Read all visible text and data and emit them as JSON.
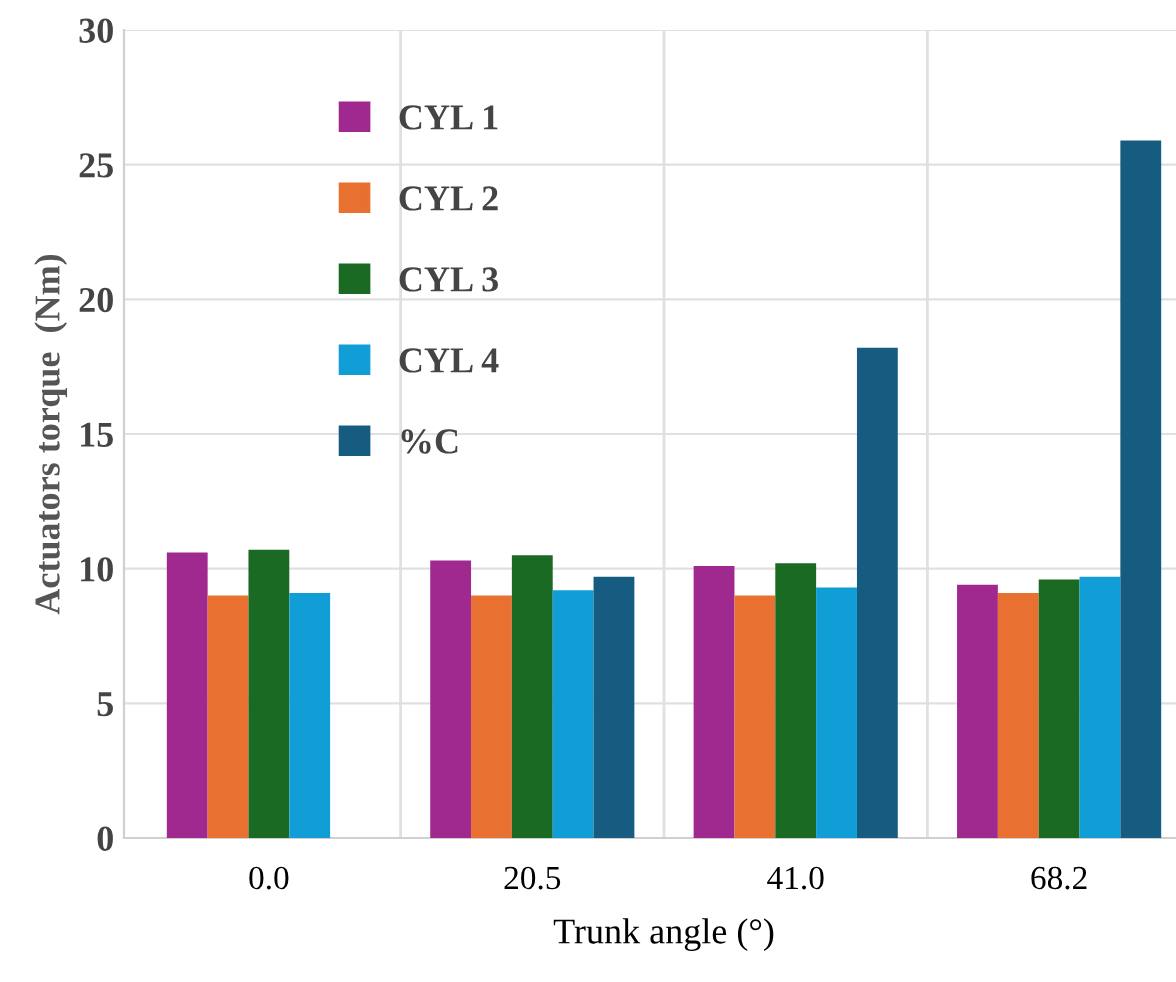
{
  "chart_data": {
    "type": "bar",
    "xlabel": "Trunk angle (°)",
    "ylabel": "Actuators torque  (Nm)",
    "categories": [
      "0.0",
      "20.5",
      "41.0",
      "68.2"
    ],
    "series": [
      {
        "name": "CYL 1",
        "color": "#a0298f",
        "values": [
          10.6,
          10.3,
          10.1,
          9.4
        ]
      },
      {
        "name": "CYL 2",
        "color": "#e87030",
        "values": [
          9.0,
          9.0,
          9.0,
          9.1
        ]
      },
      {
        "name": "CYL 3",
        "color": "#1b6a24",
        "values": [
          10.7,
          10.5,
          10.2,
          9.6
        ]
      },
      {
        "name": "CYL 4",
        "color": "#119ed6",
        "values": [
          9.1,
          9.2,
          9.3,
          9.7
        ]
      },
      {
        "name": "%C",
        "color": "#165c80",
        "values": [
          null,
          9.7,
          18.2,
          25.9
        ]
      }
    ],
    "ylim": [
      0,
      30
    ],
    "yticks": [
      0,
      5,
      10,
      15,
      20,
      25,
      30
    ],
    "grid": true,
    "legend": "top left"
  }
}
